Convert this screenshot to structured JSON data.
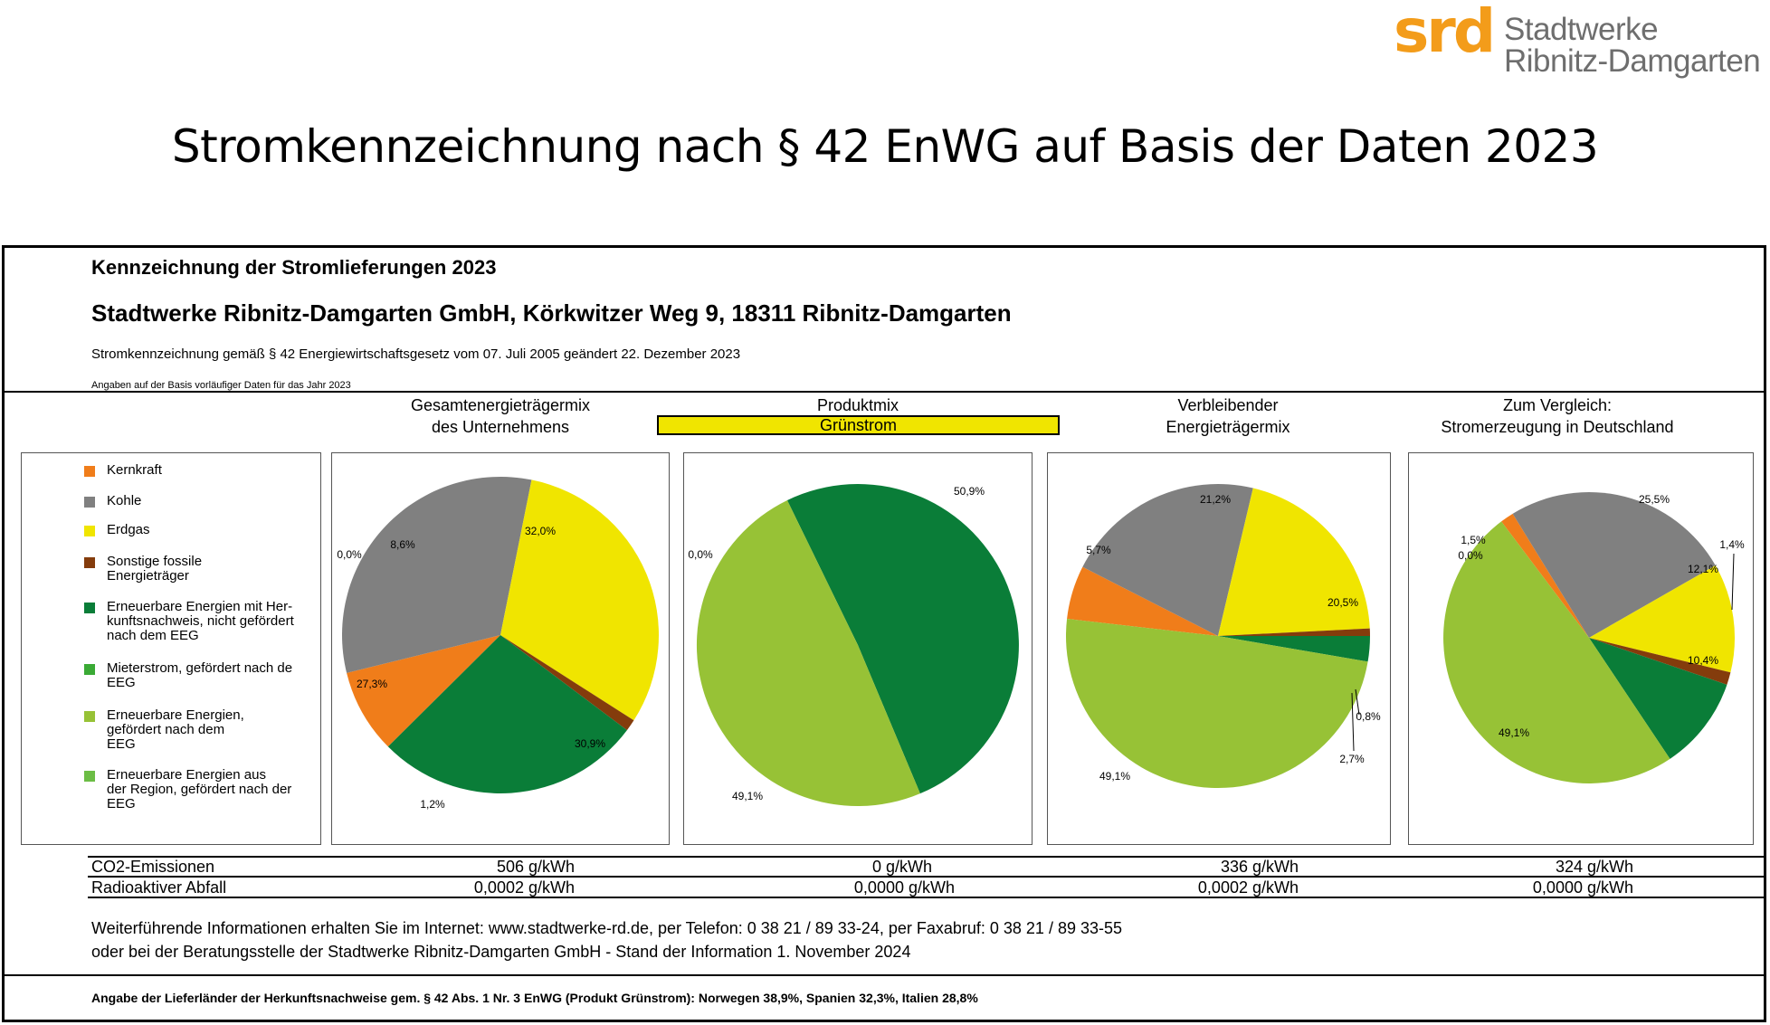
{
  "logo": {
    "mark": "srd",
    "line1": "Stadtwerke",
    "line2": "Ribnitz-Damgarten"
  },
  "title": "Stromkennzeichnung nach § 42 EnWG auf Basis der Daten 2023",
  "box": {
    "heading": "Kennzeichnung der Stromlieferungen 2023",
    "company": "Stadtwerke Ribnitz-Damgarten GmbH, Körkwitzer Weg 9, 18311 Ribnitz-Damgarten",
    "legal": "Stromkennzeichnung gemäß § 42 Energiewirtschaftsgesetz vom 07. Juli 2005 geändert 22. Dezember 2023",
    "basis_note": "Angaben auf der Basis vorläufiger Daten für das Jahr 2023"
  },
  "columns": [
    {
      "title_line1": "Gesamtenergieträgermix",
      "title_line2": "des Unternehmens"
    },
    {
      "title_line1": "Produktmix",
      "title_line2": "Grünstrom"
    },
    {
      "title_line1": "Verbleibender",
      "title_line2": "Energieträgermix"
    },
    {
      "title_line1": "Zum Vergleich:",
      "title_line2": "Stromerzeugung in Deutschland"
    }
  ],
  "legend": [
    {
      "label_lines": [
        "Kernkraft"
      ],
      "color": "#f07d1a"
    },
    {
      "label_lines": [
        "Kohle"
      ],
      "color": "#808080"
    },
    {
      "label_lines": [
        "Erdgas"
      ],
      "color": "#f0e500"
    },
    {
      "label_lines": [
        "Sonstige fossile",
        "Energieträger"
      ],
      "color": "#843c0c"
    },
    {
      "label_lines": [
        "Erneuerbare Energien mit Her-",
        "kunftsnachweis, nicht gefördert",
        "nach dem EEG"
      ],
      "color": "#0a7d38"
    },
    {
      "label_lines": [
        "Mieterstrom, gefördert nach de",
        "EEG"
      ],
      "color": "#3aaa35"
    },
    {
      "label_lines": [
        "Erneuerbare Energien,",
        "gefördert nach dem",
        "EEG"
      ],
      "color": "#97c236"
    },
    {
      "label_lines": [
        "Erneuerbare Energien aus",
        "der Region, gefördert nach der",
        "EEG"
      ],
      "color": "#6cbd45"
    }
  ],
  "chart_data": [
    {
      "type": "pie",
      "title": "Gesamtenergieträgermix des Unternehmens",
      "categories": [
        "Kernkraft",
        "Kohle",
        "Erdgas",
        "Sonstige fossile Energieträger",
        "Erneuerbare Energien mit Herkunftsnachweis, nicht gefördert nach dem EEG",
        "Mieterstrom, gefördert nach dem EEG",
        "Erneuerbare Energien, gefördert nach dem EEG",
        "Erneuerbare Energien aus der Region, gefördert nach der EEG"
      ],
      "values": [
        8.6,
        32.0,
        30.9,
        1.2,
        27.3,
        0,
        0,
        0
      ],
      "labels": [
        "8,6%",
        "32,0%",
        "30,9%",
        "1,2%",
        "27,3%",
        "0,0%"
      ]
    },
    {
      "type": "pie",
      "title": "Produktmix Grünstrom",
      "categories": [
        "Kernkraft",
        "Kohle",
        "Erdgas",
        "Sonstige fossile Energieträger",
        "Erneuerbare Energien mit Herkunftsnachweis, nicht gefördert nach dem EEG",
        "Mieterstrom, gefördert nach dem EEG",
        "Erneuerbare Energien, gefördert nach dem EEG",
        "Erneuerbare Energien aus der Region, gefördert nach der EEG"
      ],
      "values": [
        0,
        0,
        0,
        0,
        50.9,
        0,
        49.1,
        0
      ],
      "labels": [
        "50,9%",
        "49,1%",
        "0,0%"
      ]
    },
    {
      "type": "pie",
      "title": "Verbleibender Energieträgermix",
      "categories": [
        "Kernkraft",
        "Kohle",
        "Erdgas",
        "Sonstige fossile Energieträger",
        "Erneuerbare Energien mit Herkunftsnachweis, nicht gefördert nach dem EEG",
        "Mieterstrom, gefördert nach dem EEG",
        "Erneuerbare Energien, gefördert nach dem EEG",
        "Erneuerbare Energien aus der Region, gefördert nach der EEG"
      ],
      "values": [
        5.7,
        21.2,
        20.5,
        0.8,
        2.7,
        0,
        49.1,
        0
      ],
      "labels": [
        "5,7%",
        "21,2%",
        "20,5%",
        "0,8%",
        "2,7%",
        "49,1%"
      ]
    },
    {
      "type": "pie",
      "title": "Zum Vergleich: Stromerzeugung in Deutschland",
      "categories": [
        "Kernkraft",
        "Kohle",
        "Erdgas",
        "Sonstige fossile Energieträger",
        "Erneuerbare Energien mit Herkunftsnachweis, nicht gefördert nach dem EEG",
        "Mieterstrom, gefördert nach dem EEG",
        "Erneuerbare Energien, gefördert nach dem EEG",
        "Erneuerbare Energien aus der Region, gefördert nach der EEG"
      ],
      "values": [
        1.5,
        25.5,
        12.1,
        1.4,
        10.4,
        0,
        49.1,
        0
      ],
      "labels": [
        "1,5%",
        "25,5%",
        "12,1%",
        "1,4%",
        "10,4%",
        "49,1%",
        "0,0%"
      ]
    }
  ],
  "rows": [
    {
      "label": "CO2-Emissionen",
      "values": [
        "506 g/kWh",
        "0 g/kWh",
        "336 g/kWh",
        "324 g/kWh"
      ]
    },
    {
      "label": "Radioaktiver Abfall",
      "values": [
        "0,0002 g/kWh",
        "0,0000 g/kWh",
        "0,0002 g/kWh",
        "0,0000 g/kWh"
      ]
    }
  ],
  "info": {
    "line1": "Weiterführende Informationen erhalten Sie im Internet: www.stadtwerke-rd.de, per Telefon: 0 38 21 / 89 33-24, per Faxabruf: 0 38 21 / 89 33-55",
    "line2": "oder bei der Beratungsstelle der Stadtwerke Ribnitz-Damgarten GmbH - Stand der Information 1. November 2024"
  },
  "origin_note": "Angabe der Lieferländer der Herkunftsnachweise gem. § 42 Abs. 1 Nr. 3 EnWG (Produkt Grünstrom): Norwegen 38,9%, Spanien 32,3%, Italien 28,8%"
}
